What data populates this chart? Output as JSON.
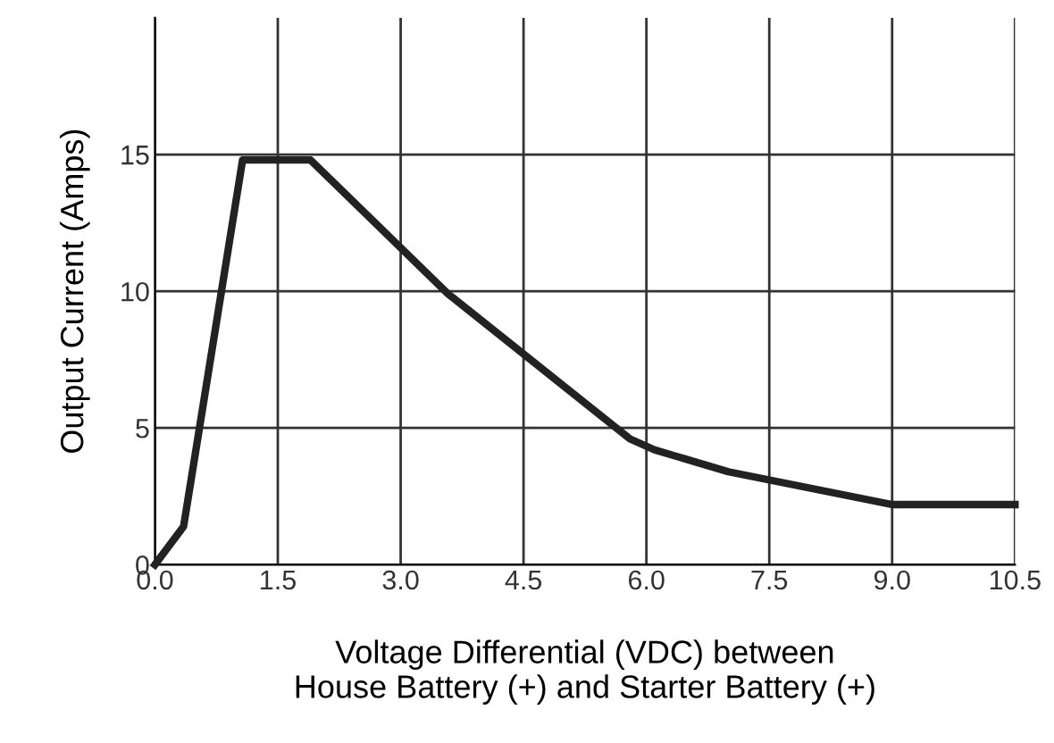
{
  "chart_data": {
    "type": "line",
    "xlabel": "Voltage Differential (VDC) between\nHouse Battery (+) and Starter Battery (+)",
    "ylabel": "Output Current (Amps)",
    "x": [
      0,
      0.35,
      1.07,
      1.9,
      3.58,
      5.8,
      6.1,
      7.0,
      9.0,
      10.5
    ],
    "series": [
      {
        "color": "#222222",
        "values": [
          0,
          1.4,
          14.8,
          14.8,
          9.9,
          4.6,
          4.2,
          3.4,
          2.2,
          2.2
        ]
      }
    ],
    "xlim": [
      0,
      10.5
    ],
    "ylim": [
      0,
      20
    ],
    "xticks": [
      {
        "value": 0,
        "label": "0.0"
      },
      1.5,
      {
        "value": 3,
        "label": "3.0"
      },
      4.5,
      {
        "value": 6,
        "label": "6.0"
      },
      7.5,
      {
        "value": 9,
        "label": "9.0"
      },
      10.5
    ],
    "yticks": [
      0,
      5,
      10,
      15
    ],
    "grid": true,
    "marker": "none",
    "line_style": "solid"
  }
}
